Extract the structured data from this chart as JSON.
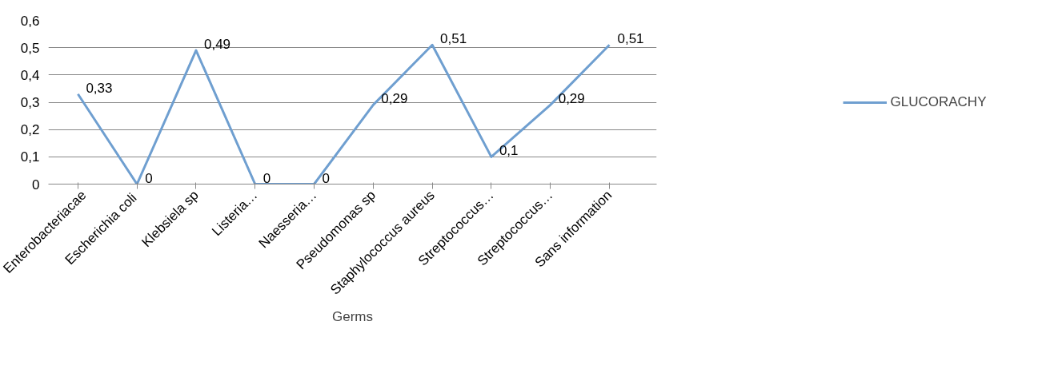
{
  "chart_data": {
    "type": "line",
    "xlabel": "Germs",
    "categories": [
      "Enterobacteriacae",
      "Escherichia  coli",
      "Klebsiela sp",
      "Listeria…",
      "Naesseria…",
      "Pseudomonas sp",
      "Staphylococcus aureus",
      "Streptococcus…",
      "Streptococcus…",
      "Sans information"
    ],
    "series": [
      {
        "name": "GLUCORACHY",
        "color": "#6f9fd0",
        "values": [
          0.33,
          0,
          0.49,
          0,
          0,
          0.29,
          0.51,
          0.1,
          0.29,
          0.51
        ],
        "value_labels": [
          "0,33",
          "0",
          "0,49",
          "0",
          "0",
          "0,29",
          "0,51",
          "0,1",
          "0,29",
          "0,51"
        ]
      }
    ],
    "ylim": [
      0,
      0.6
    ],
    "yticks": [
      0,
      {
        "value": 0.1,
        "label": "0,1"
      },
      {
        "value": 0.2,
        "label": "0,2"
      },
      {
        "value": 0.3,
        "label": "0,3"
      },
      {
        "value": 0.4,
        "label": "0,4"
      },
      {
        "value": 0.5,
        "label": "0,5"
      },
      {
        "value": 0.6,
        "label": "0,6"
      }
    ],
    "grid": "y",
    "legend": "right",
    "marker": "none",
    "line_style": "solid"
  }
}
